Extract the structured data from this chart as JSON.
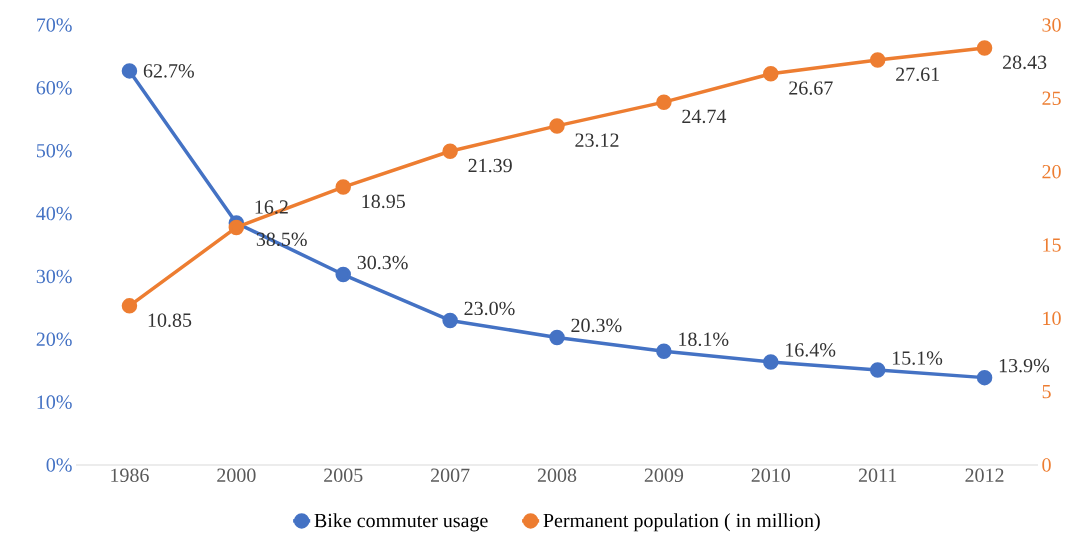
{
  "chart_data": {
    "type": "line",
    "categories": [
      "1986",
      "2000",
      "2005",
      "2007",
      "2008",
      "2009",
      "2010",
      "2011",
      "2012"
    ],
    "series": [
      {
        "name": "Bike commuter usage",
        "color": "#4472c4",
        "values": [
          62.7,
          38.5,
          30.3,
          23.0,
          20.3,
          18.1,
          16.4,
          15.1,
          13.9
        ],
        "value_labels": [
          "62.7%",
          "38.5%",
          "30.3%",
          "23.0%",
          "20.3%",
          "18.1%",
          "16.4%",
          "15.1%",
          "13.9%"
        ]
      },
      {
        "name": "Permanent population ( in million)",
        "color": "#ed7d31",
        "axis": "y2",
        "values": [
          10.85,
          16.2,
          18.95,
          21.39,
          23.12,
          24.74,
          26.67,
          27.61,
          28.43
        ],
        "value_labels": [
          "10.85",
          "16.2",
          "18.95",
          "21.39",
          "23.12",
          "24.74",
          "26.67",
          "27.61",
          "28.43"
        ]
      }
    ],
    "ylim": [
      0,
      70
    ],
    "yticks": [
      {
        "value": 0,
        "label": "0%"
      },
      {
        "value": 10,
        "label": "10%"
      },
      {
        "value": 20,
        "label": "20%"
      },
      {
        "value": 30,
        "label": "30%"
      },
      {
        "value": 40,
        "label": "40%"
      },
      {
        "value": 50,
        "label": "50%"
      },
      {
        "value": 60,
        "label": "60%"
      },
      {
        "value": 70,
        "label": "70%"
      }
    ],
    "y2lim": [
      0,
      30
    ],
    "y2ticks": [
      0,
      5,
      10,
      15,
      20,
      25,
      30
    ],
    "grid": false,
    "legend": "bottom",
    "marker": "circle",
    "line_style": "solid"
  }
}
